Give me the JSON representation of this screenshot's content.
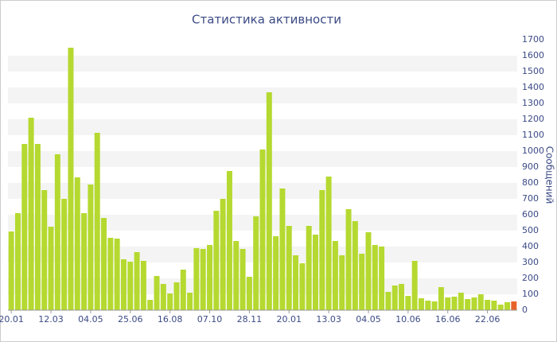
{
  "chart_data": {
    "type": "bar",
    "title": "Статистика активности",
    "y_label": "Сообщений",
    "categories": [
      "20.01",
      null,
      null,
      null,
      null,
      null,
      "12.03",
      null,
      null,
      null,
      null,
      null,
      "04.05",
      null,
      null,
      null,
      null,
      null,
      "25.06",
      null,
      null,
      null,
      null,
      null,
      "16.08",
      null,
      null,
      null,
      null,
      null,
      "07.10",
      null,
      null,
      null,
      null,
      null,
      "28.11",
      null,
      null,
      null,
      null,
      null,
      "20.01",
      null,
      null,
      null,
      null,
      null,
      "13.03",
      null,
      null,
      null,
      null,
      null,
      "04.05",
      null,
      null,
      null,
      null,
      null,
      "10.06",
      null,
      null,
      null,
      null,
      null,
      "16.06",
      null,
      null,
      null,
      null,
      null,
      "22.06",
      null,
      null,
      null,
      null
    ],
    "values": [
      495,
      610,
      1045,
      1210,
      1045,
      755,
      525,
      980,
      700,
      1650,
      835,
      610,
      790,
      1115,
      580,
      455,
      450,
      320,
      305,
      365,
      310,
      65,
      215,
      165,
      105,
      175,
      255,
      110,
      390,
      385,
      410,
      625,
      700,
      875,
      435,
      385,
      210,
      590,
      1010,
      1370,
      465,
      765,
      530,
      345,
      295,
      530,
      475,
      755,
      840,
      435,
      345,
      635,
      560,
      355,
      490,
      410,
      400,
      115,
      155,
      165,
      90,
      310,
      75,
      60,
      55,
      145,
      80,
      85,
      110,
      70,
      80,
      100,
      65,
      60,
      35,
      50,
      55
    ],
    "colors": [
      "#b5d930",
      "#b5d930",
      "#b5d930",
      "#b5d930",
      "#b5d930",
      "#b5d930",
      "#b5d930",
      "#b5d930",
      "#b5d930",
      "#b5d930",
      "#b5d930",
      "#b5d930",
      "#b5d930",
      "#b5d930",
      "#b5d930",
      "#b5d930",
      "#b5d930",
      "#b5d930",
      "#b5d930",
      "#b5d930",
      "#b5d930",
      "#b5d930",
      "#b5d930",
      "#b5d930",
      "#b5d930",
      "#b5d930",
      "#b5d930",
      "#b5d930",
      "#b5d930",
      "#b5d930",
      "#b5d930",
      "#b5d930",
      "#b5d930",
      "#b5d930",
      "#b5d930",
      "#b5d930",
      "#b5d930",
      "#b5d930",
      "#b5d930",
      "#b5d930",
      "#b5d930",
      "#b5d930",
      "#b5d930",
      "#b5d930",
      "#b5d930",
      "#b5d930",
      "#b5d930",
      "#b5d930",
      "#b5d930",
      "#b5d930",
      "#b5d930",
      "#b5d930",
      "#b5d930",
      "#b5d930",
      "#b5d930",
      "#b5d930",
      "#b5d930",
      "#b5d930",
      "#b5d930",
      "#b5d930",
      "#b5d930",
      "#b5d930",
      "#b5d930",
      "#b5d930",
      "#b5d930",
      "#b5d930",
      "#b5d930",
      "#b5d930",
      "#b5d930",
      "#b5d930",
      "#b5d930",
      "#b5d930",
      "#b5d930",
      "#b5d930",
      "#b5d930",
      "#b5d930",
      "#e8632a"
    ],
    "ylim": [
      0,
      1700
    ],
    "yticks": [
      0,
      100,
      200,
      300,
      400,
      500,
      600,
      700,
      800,
      900,
      1000,
      1100,
      1200,
      1300,
      1400,
      1500,
      1600,
      1700
    ],
    "grid": true
  }
}
